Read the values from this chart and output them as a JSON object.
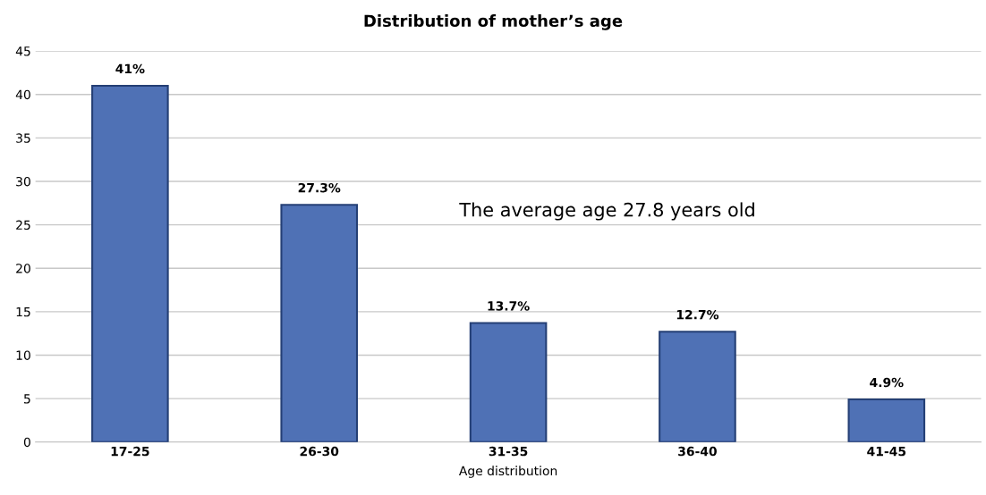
{
  "chart_data": {
    "type": "bar",
    "title": "Distribution of mother’s age",
    "xlabel": "Age distribution",
    "categories": [
      "17-25",
      "26-30",
      "31-35",
      "36-40",
      "41-45"
    ],
    "values": [
      41,
      27.3,
      13.7,
      12.7,
      4.9
    ],
    "value_labels": [
      "41%",
      "27.3%",
      "13.7%",
      "12.7%",
      "4.9%"
    ],
    "color": "#4f71b5",
    "ylim": [
      0,
      45
    ],
    "yticks": [
      0,
      5,
      10,
      15,
      20,
      25,
      30,
      35,
      40,
      45
    ],
    "grid": "y",
    "annotations": [
      "The average age 27.8 years old"
    ]
  }
}
